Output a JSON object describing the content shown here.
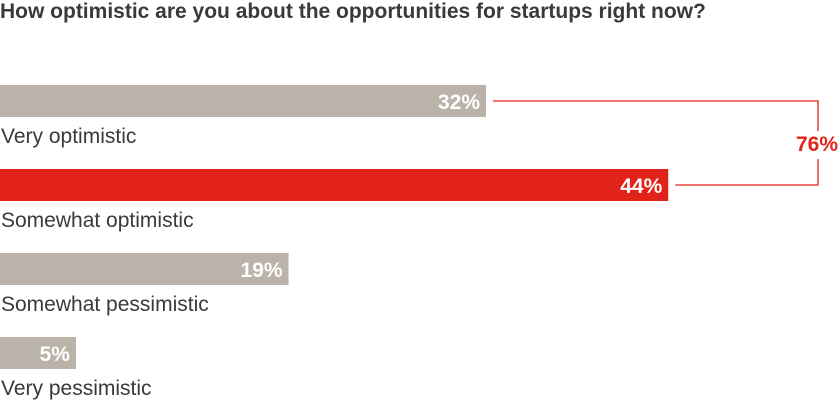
{
  "chart_data": {
    "type": "bar",
    "orientation": "horizontal",
    "title": "How optimistic are you about the opportunities for startups right now?",
    "categories": [
      "Very optimistic",
      "Somewhat optimistic",
      "Somewhat pessimistic",
      "Very pessimistic"
    ],
    "values": [
      32,
      44,
      19,
      5
    ],
    "value_labels": [
      "32%",
      "44%",
      "19%",
      "5%"
    ],
    "unit": "%",
    "xlim": [
      0,
      55
    ],
    "grid": false,
    "highlight_index": 1,
    "annotation": {
      "label": "76%",
      "value": 76,
      "spans": [
        "Very optimistic",
        "Somewhat optimistic"
      ]
    },
    "colors": {
      "bar": "#bbb2a9",
      "highlight": "#e2231a",
      "bracket": "#e2231a",
      "text": "#3a3a3a"
    }
  }
}
